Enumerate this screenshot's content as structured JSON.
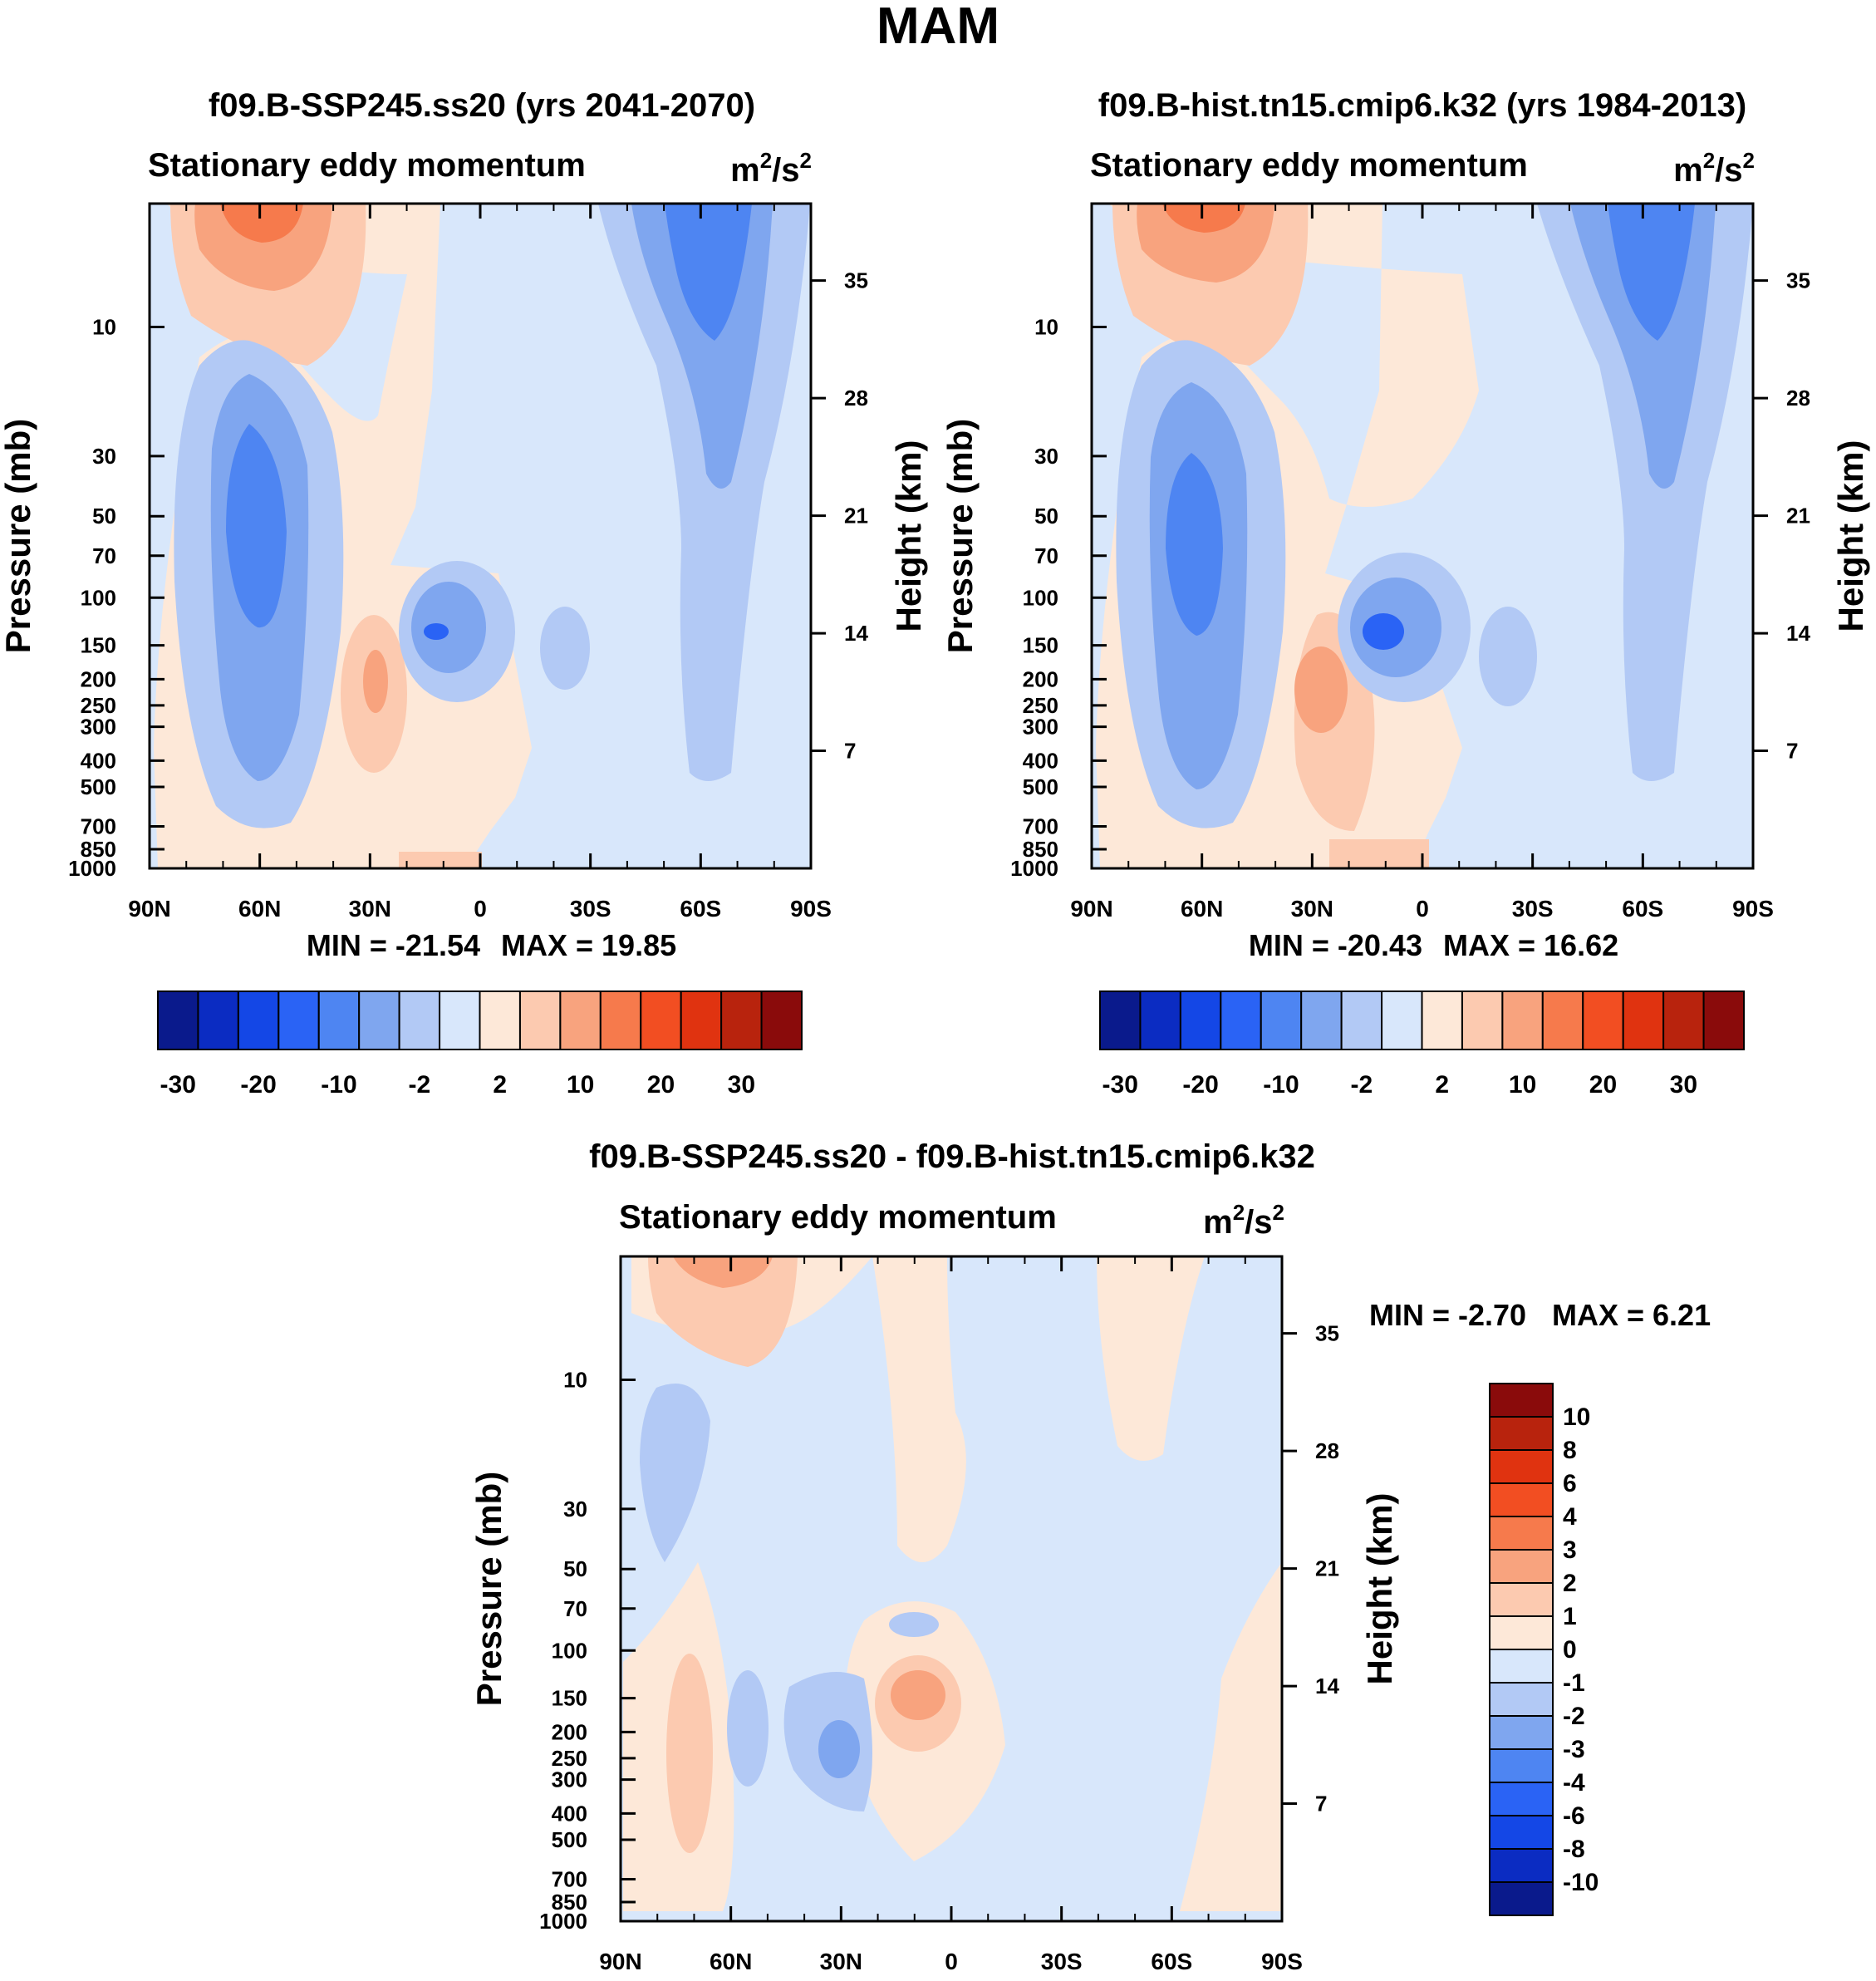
{
  "figure": {
    "title": "MAM"
  },
  "units": {
    "base": "m",
    "sup1": "2",
    "slash": "/s",
    "sup2": "2"
  },
  "chart_data": [
    {
      "type": "contour",
      "id": "p1",
      "title": "f09.B-SSP245.ss20 (yrs 2041-2070)",
      "subtitle": "Stationary eddy momentum",
      "xlabel": "",
      "ylabel": "Pressure (mb)",
      "ylabel_right": "Height (km)",
      "x_ticks": [
        "90N",
        "60N",
        "30N",
        "0",
        "30S",
        "60S",
        "90S"
      ],
      "y_ticks": [
        "10",
        "30",
        "50",
        "70",
        "100",
        "150",
        "200",
        "250",
        "300",
        "400",
        "500",
        "700",
        "850",
        "1000"
      ],
      "y_ticks_right": [
        "35",
        "28",
        "21",
        "14",
        "7"
      ],
      "min_label": "MIN = -21.54",
      "max_label": "MAX =  19.85",
      "min": -21.54,
      "max": 19.85,
      "colorbar": {
        "orientation": "horizontal",
        "labels": [
          "-30",
          "-20",
          "-10",
          "-2",
          "2",
          "10",
          "20",
          "30"
        ],
        "levels": [
          -30,
          -25,
          -20,
          -15,
          -10,
          -5,
          -2,
          0,
          2,
          5,
          10,
          15,
          20,
          25,
          30
        ]
      }
    },
    {
      "type": "contour",
      "id": "p2",
      "title": "f09.B-hist.tn15.cmip6.k32 (yrs 1984-2013)",
      "subtitle": "Stationary eddy momentum",
      "xlabel": "",
      "ylabel": "Pressure (mb)",
      "ylabel_right": "Height (km)",
      "x_ticks": [
        "90N",
        "60N",
        "30N",
        "0",
        "30S",
        "60S",
        "90S"
      ],
      "y_ticks": [
        "10",
        "30",
        "50",
        "70",
        "100",
        "150",
        "200",
        "250",
        "300",
        "400",
        "500",
        "700",
        "850",
        "1000"
      ],
      "y_ticks_right": [
        "35",
        "28",
        "21",
        "14",
        "7"
      ],
      "min_label": "MIN = -20.43",
      "max_label": "MAX =  16.62",
      "min": -20.43,
      "max": 16.62,
      "colorbar": {
        "orientation": "horizontal",
        "labels": [
          "-30",
          "-20",
          "-10",
          "-2",
          "2",
          "10",
          "20",
          "30"
        ],
        "levels": [
          -30,
          -25,
          -20,
          -15,
          -10,
          -5,
          -2,
          0,
          2,
          5,
          10,
          15,
          20,
          25,
          30
        ]
      }
    },
    {
      "type": "contour",
      "id": "p3",
      "title": "f09.B-SSP245.ss20 - f09.B-hist.tn15.cmip6.k32",
      "subtitle": "Stationary eddy momentum",
      "xlabel": "",
      "ylabel": "Pressure (mb)",
      "ylabel_right": "Height (km)",
      "x_ticks": [
        "90N",
        "60N",
        "30N",
        "0",
        "30S",
        "60S",
        "90S"
      ],
      "y_ticks": [
        "10",
        "30",
        "50",
        "70",
        "100",
        "150",
        "200",
        "250",
        "300",
        "400",
        "500",
        "700",
        "850",
        "1000"
      ],
      "y_ticks_right": [
        "35",
        "28",
        "21",
        "14",
        "7"
      ],
      "min_label": "MIN =  -2.70",
      "max_label": "MAX =   6.21",
      "min": -2.7,
      "max": 6.21,
      "colorbar": {
        "orientation": "vertical",
        "labels": [
          "10",
          "8",
          "6",
          "4",
          "3",
          "2",
          "1",
          "0",
          "-1",
          "-2",
          "-3",
          "-4",
          "-6",
          "-8",
          "-10"
        ],
        "levels": [
          10,
          8,
          6,
          4,
          3,
          2,
          1,
          0,
          -1,
          -2,
          -3,
          -4,
          -6,
          -8,
          -10
        ]
      }
    }
  ],
  "palette": [
    "#0a1a8c",
    "#0b2cc2",
    "#1447e6",
    "#2a63f5",
    "#4e85f2",
    "#7fa6ef",
    "#b2c9f5",
    "#d8e7fb",
    "#fde8d8",
    "#fccab0",
    "#f8a37e",
    "#f67a4c",
    "#f24e22",
    "#e03310",
    "#b8230d",
    "#8a0b0b"
  ]
}
